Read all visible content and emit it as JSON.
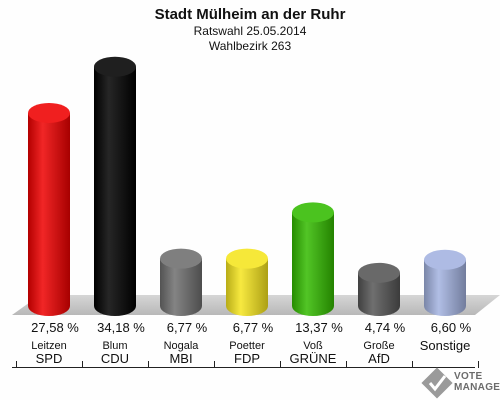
{
  "header": {
    "title": "Stadt Mülheim an der Ruhr",
    "subtitle1": "Ratswahl 25.05.2014",
    "subtitle2": "Wahlbezirk 263"
  },
  "chart_data": {
    "type": "bar",
    "title": "Stadt Mülheim an der Ruhr",
    "subtitle": [
      "Ratswahl 25.05.2014",
      "Wahlbezirk 263"
    ],
    "categories": [
      "SPD",
      "CDU",
      "MBI",
      "FDP",
      "GRÜNE",
      "AfD",
      "Sonstige"
    ],
    "candidates": [
      "Leitzen",
      "Blum",
      "Nogala",
      "Poetter",
      "Voß",
      "Große",
      ""
    ],
    "values": [
      27.58,
      34.18,
      6.77,
      6.77,
      13.37,
      4.74,
      6.6
    ],
    "value_labels": [
      "27,58 %",
      "34,18 %",
      "6,77 %",
      "6,77 %",
      "13,37 %",
      "4,74 %",
      "6,60 %"
    ],
    "colors": [
      "#ee0000",
      "#000000",
      "#6e6e6e",
      "#f5e51e",
      "#33bb00",
      "#555555",
      "#a3b2e0"
    ],
    "xlabel": "",
    "ylabel": "",
    "ylim": [
      0,
      35
    ],
    "grid": false,
    "legend": "none"
  },
  "logo": {
    "name": "vote-manager-logo",
    "line1": "VOTE",
    "line2": "MANAGER"
  }
}
